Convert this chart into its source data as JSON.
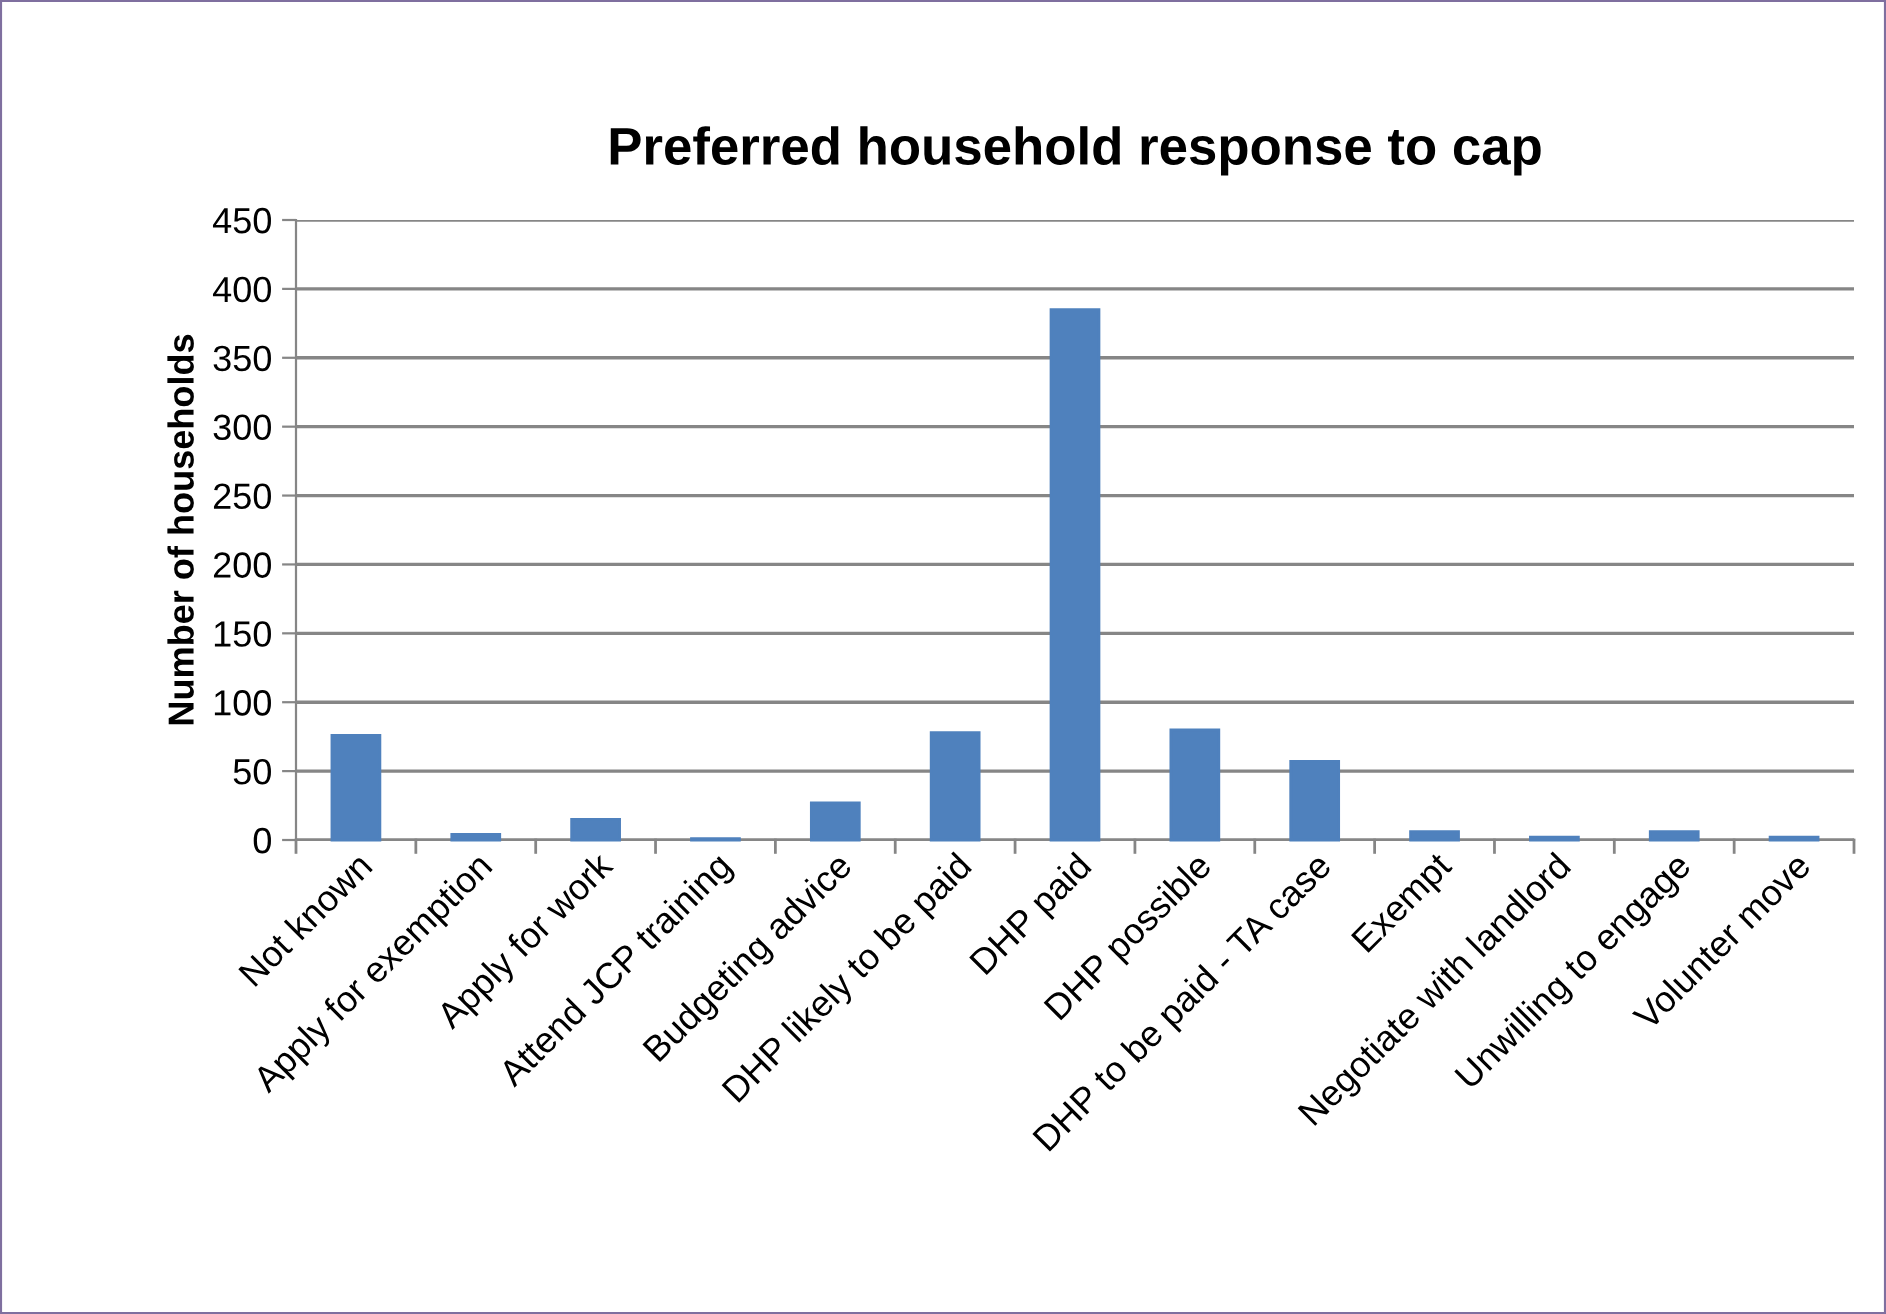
{
  "chart_data": {
    "type": "bar",
    "title": "Preferred household response to cap",
    "ylabel": "Number of households",
    "categories": [
      "Not known",
      "Apply for exemption",
      "Apply for work",
      "Attend JCP training",
      "Budgeting advice",
      "DHP likely to be paid",
      "DHP paid",
      "DHP possible",
      "DHP to be paid - TA case",
      "Exempt",
      "Negotiate with landlord",
      "Unwilling to engage",
      "Volunter move"
    ],
    "values": [
      76,
      4,
      15,
      1,
      27,
      78,
      385,
      80,
      57,
      6,
      2,
      6,
      2
    ],
    "color": "#4f81bd",
    "ylim": [
      0,
      450
    ],
    "yticks": [
      0,
      50,
      100,
      150,
      200,
      250,
      300,
      350,
      400,
      450
    ],
    "grid": "y",
    "legend": false
  }
}
